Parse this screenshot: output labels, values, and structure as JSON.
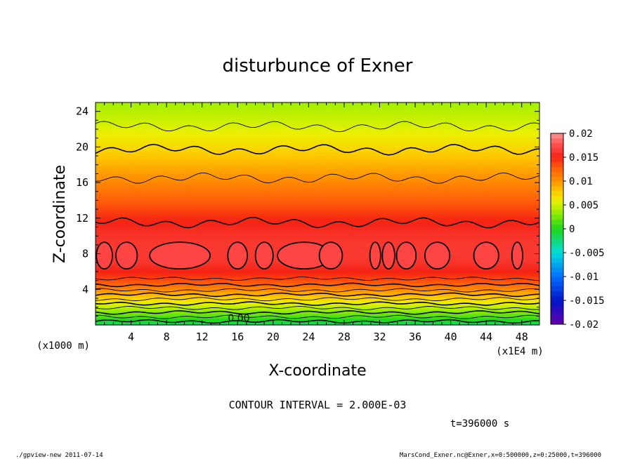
{
  "chart_data": {
    "type": "heatmap",
    "title": "disturbunce of Exner",
    "xlabel": "X-coordinate",
    "ylabel": "Z-coordinate",
    "x_unit": "(x1E4 m)",
    "y_unit": "(x1000 m)",
    "xlim": [
      0,
      50
    ],
    "ylim": [
      0,
      25
    ],
    "x_ticks": [
      "4",
      "8",
      "12",
      "16",
      "20",
      "24",
      "28",
      "32",
      "36",
      "40",
      "44",
      "48"
    ],
    "y_ticks": [
      "4",
      "8",
      "12",
      "16",
      "20",
      "24"
    ],
    "colorbar": {
      "ticks": [
        "0.02",
        "0.015",
        "0.01",
        "0.005",
        "0",
        "-0.005",
        "-0.01",
        "-0.015",
        "-0.02"
      ],
      "min": -0.02,
      "max": 0.02
    },
    "contour_label": "0.00",
    "contour_interval_text": "CONTOUR INTERVAL = 2.000E-03",
    "time_text": "t=396000 s",
    "profile": {
      "z": [
        0,
        1,
        2,
        3,
        4,
        5,
        6,
        7,
        8,
        9,
        10,
        11,
        12,
        13,
        14,
        15,
        16,
        17,
        18,
        19,
        20,
        21,
        22,
        23,
        24,
        25
      ],
      "value": [
        -0.002,
        0.0015,
        0.0045,
        0.0075,
        0.0105,
        0.0135,
        0.015,
        0.016,
        0.0164,
        0.0163,
        0.016,
        0.0154,
        0.0147,
        0.0138,
        0.0128,
        0.0118,
        0.0108,
        0.0098,
        0.0089,
        0.008,
        0.0072,
        0.0064,
        0.0057,
        0.005,
        0.0044,
        0.0038
      ]
    },
    "closed_contour_centers_x": [
      1,
      3.5,
      9.5,
      16,
      19,
      23.5,
      26.5,
      31.5,
      33,
      35,
      38.5,
      44,
      47.5
    ]
  },
  "footer": {
    "left": "./gpview-new  2011-07-14",
    "right": "MarsCond_Exner.nc@Exner,x=0:500000,z=0:25000,t=396000"
  }
}
